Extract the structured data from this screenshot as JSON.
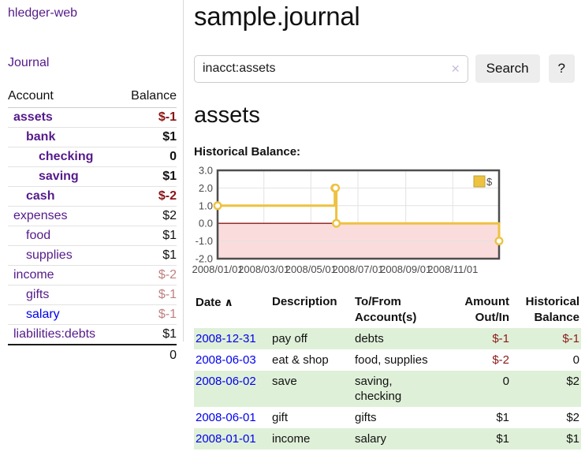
{
  "sidebar": {
    "brand": "hledger-web",
    "journal_link": "Journal",
    "accounts_table": {
      "headers": [
        "Account",
        "Balance"
      ],
      "rows": [
        {
          "account": "assets",
          "balance": "$-1",
          "indent": 0,
          "bold": true,
          "balance_style": "negative-dark"
        },
        {
          "account": "bank",
          "balance": "$1",
          "indent": 1,
          "bold": true,
          "balance_style": ""
        },
        {
          "account": "checking",
          "balance": "0",
          "indent": 2,
          "bold": true,
          "balance_style": ""
        },
        {
          "account": "saving",
          "balance": "$1",
          "indent": 2,
          "bold": true,
          "balance_style": ""
        },
        {
          "account": "cash",
          "balance": "$-2",
          "indent": 1,
          "bold": true,
          "balance_style": "negative-dark"
        },
        {
          "account": "expenses",
          "balance": "$2",
          "indent": 0,
          "bold": false,
          "balance_style": ""
        },
        {
          "account": "food",
          "balance": "$1",
          "indent": 1,
          "bold": false,
          "balance_style": ""
        },
        {
          "account": "supplies",
          "balance": "$1",
          "indent": 1,
          "bold": false,
          "balance_style": ""
        },
        {
          "account": "income",
          "balance": "$-2",
          "indent": 0,
          "bold": false,
          "balance_style": "negative-light"
        },
        {
          "account": "gifts",
          "balance": "$-1",
          "indent": 1,
          "bold": false,
          "balance_style": "negative-light"
        },
        {
          "account": "salary",
          "balance": "$-1",
          "indent": 1,
          "bold": false,
          "balance_style": "negative-light",
          "link_color": "blue"
        },
        {
          "account": "liabilities:debts",
          "balance": "$1",
          "indent": 0,
          "bold": false,
          "balance_style": ""
        }
      ],
      "total": "0"
    }
  },
  "main": {
    "title": "sample.journal",
    "search": {
      "value": "inacct:assets",
      "clear_icon": "✕",
      "button_label": "Search",
      "help_label": "?"
    },
    "section_title": "assets",
    "chart_label": "Historical Balance:"
  },
  "chart_data": {
    "type": "line",
    "step": true,
    "title": "Historical Balance",
    "series": [
      {
        "name": "$",
        "color": "#edc240",
        "points": [
          [
            "2008-01-01",
            1
          ],
          [
            "2008-06-01",
            2
          ],
          [
            "2008-06-02",
            2
          ],
          [
            "2008-06-03",
            0
          ],
          [
            "2008-12-31",
            -1
          ]
        ]
      }
    ],
    "xlim": [
      "2008-01-01",
      "2008-12-31"
    ],
    "ylim": [
      -2,
      3
    ],
    "y_ticks": [
      3,
      2,
      1,
      0,
      -1,
      -2
    ],
    "x_ticks": [
      "2008/01/01",
      "2008/03/01",
      "2008/05/01",
      "2008/07/01",
      "2008/09/01",
      "2008/11/01"
    ],
    "legend": "$",
    "legend_position": "top-right",
    "grid": true,
    "negative_band_color": "#fbdcdc",
    "zero_line_color": "#8b1a1a",
    "grid_color": "#e2e2e2",
    "border_color": "#4d4d4d"
  },
  "register_table": {
    "headers": {
      "date": "Date",
      "sort_arrow": "∧",
      "description": "Description",
      "accounts": "To/From Account(s)",
      "amount": "Amount Out/In",
      "balance": "Historical Balance"
    },
    "rows": [
      {
        "date": "2008-12-31",
        "description": "pay off",
        "accounts": "debts",
        "amount": "$-1",
        "amount_negative": true,
        "balance": "$-1",
        "balance_negative": true
      },
      {
        "date": "2008-06-03",
        "description": "eat & shop",
        "accounts": "food, supplies",
        "amount": "$-2",
        "amount_negative": true,
        "balance": "0",
        "balance_negative": false
      },
      {
        "date": "2008-06-02",
        "description": "save",
        "accounts": "saving, checking",
        "amount": "0",
        "amount_negative": false,
        "balance": "$2",
        "balance_negative": false
      },
      {
        "date": "2008-06-01",
        "description": "gift",
        "accounts": "gifts",
        "amount": "$1",
        "amount_negative": false,
        "balance": "$2",
        "balance_negative": false
      },
      {
        "date": "2008-01-01",
        "description": "income",
        "accounts": "salary",
        "amount": "$1",
        "amount_negative": false,
        "balance": "$1",
        "balance_negative": false
      }
    ]
  },
  "colors": {
    "link_purple": "#551a8b",
    "link_blue": "#0000ee",
    "negative_dark": "#8b1414",
    "negative_light": "#c08080",
    "register_negative": "#8b1a1a",
    "row_stripe_green": "#dff0d8",
    "chart_line": "#edc240",
    "button_background": "#ededed"
  }
}
